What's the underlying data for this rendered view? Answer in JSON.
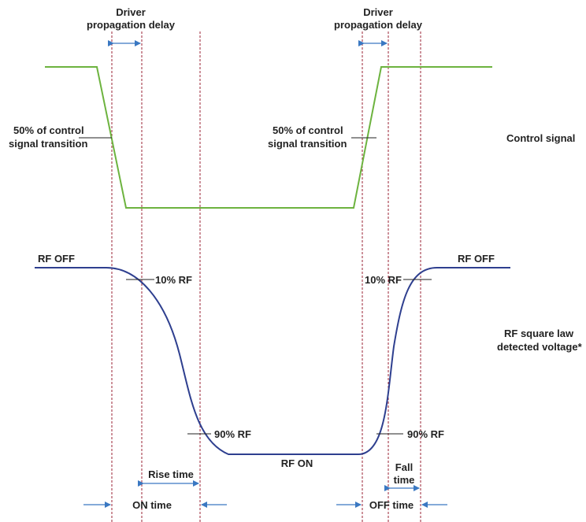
{
  "labels": {
    "delay_left_line1": "Driver",
    "delay_left_line2": "propagation delay",
    "delay_right_line1": "Driver",
    "delay_right_line2": "propagation delay",
    "transition_left_line1": "50% of control",
    "transition_left_line2": "signal transition",
    "transition_right_line1": "50% of control",
    "transition_right_line2": "signal transition",
    "control_signal": "Control signal",
    "rf_off_left": "RF OFF",
    "rf_off_right": "RF OFF",
    "rf10_left": "10% RF",
    "rf10_right": "10% RF",
    "rf90_left": "90% RF",
    "rf90_right": "90% RF",
    "rf_on": "RF ON",
    "rf_detected_line1": "RF square law",
    "rf_detected_line2": "detected voltage*",
    "rise_time": "Rise time",
    "fall_time_line1": "Fall",
    "fall_time_line2": "time",
    "on_time": "ON time",
    "off_time": "OFF time"
  },
  "colors": {
    "control_signal": "#6db33f",
    "rf_signal": "#2e3f8f",
    "marker_lines": "#9b2335",
    "arrows": "#3a78c2",
    "text": "#222222"
  }
}
